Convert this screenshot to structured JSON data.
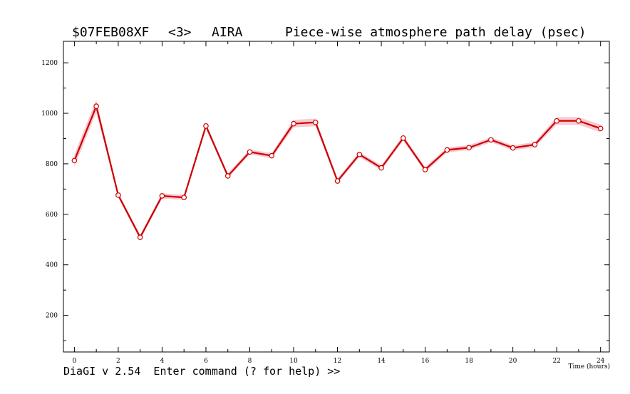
{
  "header": {
    "session": "$07FEB08XF",
    "index": "<3>",
    "station": "AIRA",
    "plot_title": "Piece-wise atmosphere path delay (psec)"
  },
  "footer": {
    "prompt": "DiaGI v 2.54  Enter command (? for help) >>"
  },
  "colors": {
    "line": "#cc0000",
    "band": "#f7b6c2",
    "marker_fill": "#ffffff",
    "marker_stroke": "#cc0000"
  },
  "chart_data": {
    "type": "line",
    "title": "Piece-wise atmosphere path delay (psec)",
    "xlabel": "Time (hours)",
    "ylabel": "",
    "xlim": [
      -0.5,
      24.4
    ],
    "ylim": [
      55,
      1285
    ],
    "x_ticks": [
      0,
      2,
      4,
      6,
      8,
      10,
      12,
      14,
      16,
      18,
      20,
      22,
      24
    ],
    "y_ticks": [
      200,
      400,
      600,
      800,
      1000,
      1200
    ],
    "grid": false,
    "series": [
      {
        "x": [
          0,
          1,
          2,
          3,
          4,
          5,
          6,
          7,
          8,
          9,
          10,
          11,
          12,
          13,
          14,
          15,
          16,
          17,
          18,
          19,
          20,
          21,
          22,
          23,
          24
        ],
        "values": [
          813,
          1028,
          676,
          509,
          673,
          667,
          950,
          752,
          847,
          832,
          959,
          964,
          732,
          837,
          784,
          902,
          777,
          855,
          864,
          895,
          863,
          876,
          970,
          970,
          940
        ],
        "error": [
          25,
          25,
          10,
          10,
          10,
          10,
          10,
          10,
          10,
          10,
          15,
          15,
          10,
          10,
          10,
          10,
          10,
          10,
          10,
          10,
          10,
          10,
          15,
          15,
          15
        ]
      }
    ]
  }
}
